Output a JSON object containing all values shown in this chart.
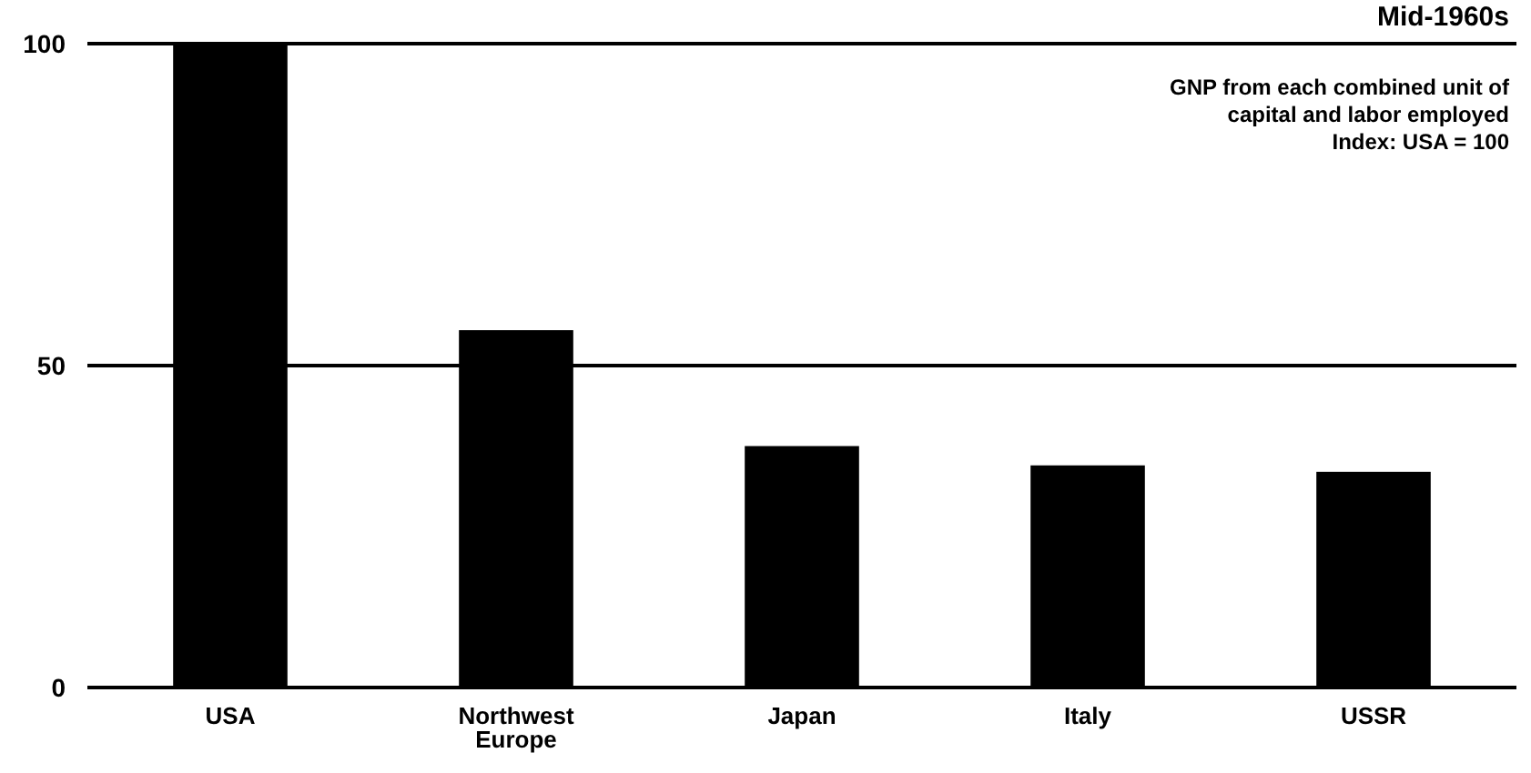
{
  "chart_data": {
    "type": "bar",
    "title": "Mid-1960s",
    "subtitle": "GNP from each combined unit of capital and labor employed",
    "annotations": [
      "Index:  USA = 100"
    ],
    "categories": [
      "USA",
      "Northwest Europe",
      "Japan",
      "Italy",
      "USSR"
    ],
    "values": [
      100,
      55.5,
      37.5,
      34.5,
      33.5
    ],
    "color": "#000000",
    "ylim": [
      0,
      100
    ],
    "yticks": [
      0,
      50,
      100
    ],
    "grid": "y"
  }
}
